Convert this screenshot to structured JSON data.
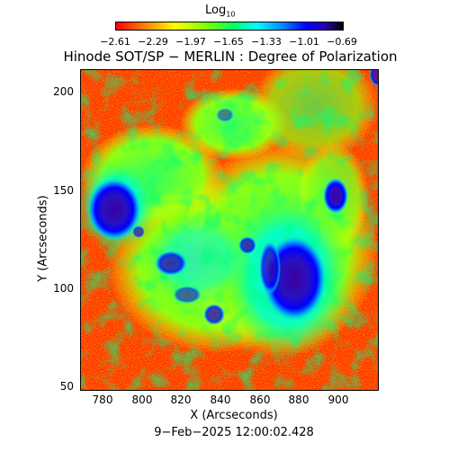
{
  "colorbar": {
    "title": "Log",
    "title_sub": "10",
    "ticks": [
      "−2.61",
      "−2.29",
      "−1.97",
      "−1.65",
      "−1.33",
      "−1.01",
      "−0.69"
    ]
  },
  "title": "Hinode SOT/SP − MERLIN : Degree of Polarization",
  "x_axis": {
    "label": "X (Arcseconds)",
    "ticks": [
      "780",
      "800",
      "820",
      "840",
      "860",
      "880",
      "900"
    ]
  },
  "y_axis": {
    "label": "Y (Arcseconds)",
    "ticks": [
      "200",
      "150",
      "100",
      "50"
    ]
  },
  "timestamp": "9−Feb−2025 12:00:02.428",
  "colors": {
    "high": "#2a00b0",
    "mid_high": "#0000ff",
    "mid": "#00ffff",
    "mid_low": "#00ff66",
    "low": "#ff0000"
  }
}
